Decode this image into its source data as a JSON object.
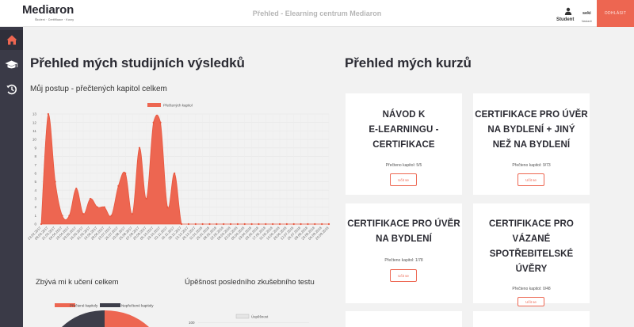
{
  "header": {
    "logo": "Mediaron",
    "logo_tagline": "Školení · Certifikace · Kurzy",
    "page_title": "Přehled - Elearning centrum Mediaron",
    "user_role": "Student",
    "user_name": "seki",
    "user_sub": "Nastavit",
    "logout_label": "ODHLÁSIT"
  },
  "sidebar": {
    "items": [
      {
        "icon": "home-icon",
        "active": true
      },
      {
        "icon": "graduation-cap-icon",
        "active": false
      },
      {
        "icon": "history-icon",
        "active": false
      }
    ]
  },
  "results": {
    "heading": "Přehled mých studijních výsledků",
    "progress_subtitle": "Můj postup - přečtených kapitol celkem",
    "remaining_title": "Zbývá mi k učení celkem",
    "success_title": "Úpěšnost posledního zkušebního testu",
    "pie_legend_read": "Přečtené kapitoly",
    "pie_legend_unread": "Nepřečtené kapitoly",
    "bar_legend": "Úspěšnost",
    "bar_axis_top": "100"
  },
  "chart_data": {
    "type": "area",
    "legend": "Přečtených kapitol",
    "color": "#ed6651",
    "ylim": [
      0,
      13
    ],
    "yticks": [
      0,
      1,
      2,
      3,
      4,
      5,
      6,
      7,
      8,
      9,
      10,
      11,
      12,
      13
    ],
    "x_labels": [
      "23.02.2017",
      "08.03.2017",
      "21.03.2017",
      "04.04.2017",
      "19.04.2017",
      "03.05.2017",
      "16.05.2017",
      "31.05.2017",
      "14.06.2017",
      "29.06.2017",
      "13.07.2017",
      "26.07.2017",
      "10.08.2017",
      "25.08.2017",
      "07.09.2017",
      "20.09.2017",
      "05.10.2017",
      "19.10.2017",
      "02.11.2017",
      "16.11.2017",
      "30.11.2017",
      "13.12.2017",
      "28.12.2017",
      "11.01.2018",
      "25.01.2018",
      "08.02.2018",
      "22.02.2018",
      "08.03.2018",
      "22.03.2018",
      "05.04.2018",
      "19.04.2018",
      "03.05.2018",
      "17.05.2018",
      "31.05.2018",
      "14.06.2018",
      "28.06.2018",
      "12.07.2018",
      "26.07.2018",
      "09.08.2018",
      "23.08.2018",
      "06.09.2018",
      "20.09.2018"
    ],
    "values": [
      0,
      13,
      5,
      1,
      1,
      4.2,
      1.2,
      3,
      2,
      2,
      1,
      4.5,
      6,
      1.2,
      9,
      3,
      12,
      12,
      2,
      6,
      0,
      0,
      0,
      0,
      0,
      0,
      0,
      0,
      0,
      0,
      0,
      0,
      0,
      0,
      0,
      0,
      0,
      0,
      0,
      0,
      0,
      0
    ]
  },
  "courses": {
    "heading": "Přehled mých kurzů",
    "items": [
      {
        "title_lines": [
          "NÁVOD K",
          "E-LEARNINGU -",
          "CERTIFIKACE"
        ],
        "progress": "Přečteno kapitol: 5/5",
        "button": "Učit se"
      },
      {
        "title_lines": [
          "CERTIFIKACE PRO ÚVĚR",
          "NA BYDLENÍ + JINÝ",
          "NEŽ NA BYDLENÍ"
        ],
        "progress": "Přečteno kapitol: 9/73",
        "button": "Učit se"
      },
      {
        "title_lines": [
          "CERTIFIKACE PRO ÚVĚR",
          "NA BYDLENÍ"
        ],
        "progress": "Přečteno kapitol: 1/78",
        "button": "Učit se"
      },
      {
        "title_lines": [
          "CERTIFIKACE PRO",
          "VÁZANÉ",
          "SPOTŘEBITELSKÉ",
          "ÚVĚRY"
        ],
        "progress": "Přečteno kapitol: 0/48",
        "button": "Učit se"
      }
    ]
  }
}
